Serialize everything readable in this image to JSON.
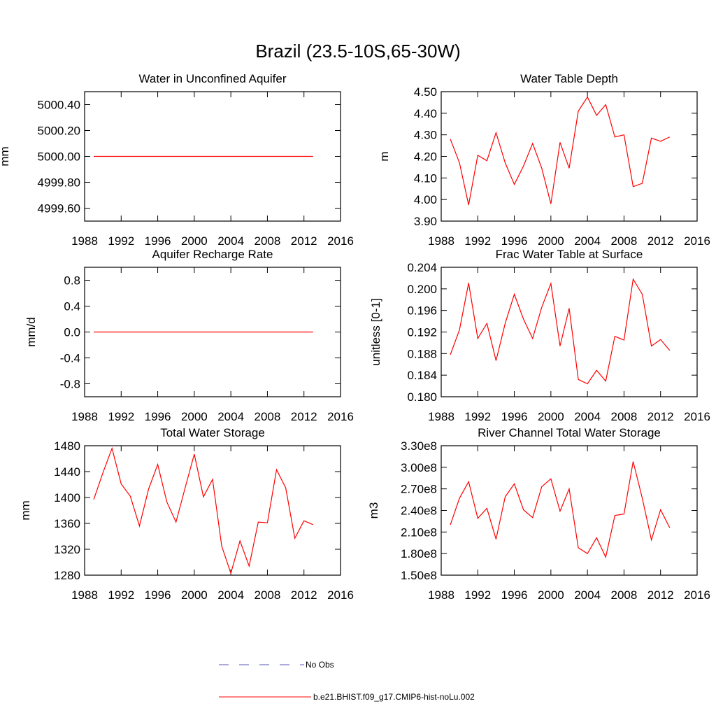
{
  "title": "Brazil (23.5-10S,65-30W)",
  "legend": [
    {
      "name": "No Obs",
      "color": "#5a5ab4",
      "dash": true
    },
    {
      "name": "b.e21.BHIST.f09_g17.CMIP6-hist-noLu.002",
      "color": "#ff0000",
      "dash": false
    }
  ],
  "chart_data": [
    {
      "type": "line",
      "title": "Water in Unconfined Aquifer",
      "ylabel": "mm",
      "x": [
        1989,
        1990,
        1991,
        1992,
        1993,
        1994,
        1995,
        1996,
        1997,
        1998,
        1999,
        2000,
        2001,
        2002,
        2003,
        2004,
        2005,
        2006,
        2007,
        2008,
        2009,
        2010,
        2011,
        2012,
        2013
      ],
      "xlim": [
        1988,
        2016
      ],
      "xticks": [
        1988,
        1992,
        1996,
        2000,
        2004,
        2008,
        2012,
        2016
      ],
      "ylim": [
        4999.5,
        5000.5
      ],
      "yticks": [
        {
          "value": 4999.6,
          "label": "4999.60"
        },
        {
          "value": 4999.8,
          "label": "4999.80"
        },
        {
          "value": 5000,
          "label": "5000.00"
        },
        {
          "value": 5000.2,
          "label": "5000.20"
        },
        {
          "value": 5000.4,
          "label": "5000.40"
        }
      ],
      "series": [
        {
          "color": "#ff0000",
          "values": [
            5000,
            5000,
            5000,
            5000,
            5000,
            5000,
            5000,
            5000,
            5000,
            5000,
            5000,
            5000,
            5000,
            5000,
            5000,
            5000,
            5000,
            5000,
            5000,
            5000,
            5000,
            5000,
            5000,
            5000,
            5000
          ]
        }
      ]
    },
    {
      "type": "line",
      "title": "Water Table Depth",
      "ylabel": "m",
      "x": [
        1989,
        1990,
        1991,
        1992,
        1993,
        1994,
        1995,
        1996,
        1997,
        1998,
        1999,
        2000,
        2001,
        2002,
        2003,
        2004,
        2005,
        2006,
        2007,
        2008,
        2009,
        2010,
        2011,
        2012,
        2013
      ],
      "xlim": [
        1988,
        2016
      ],
      "xticks": [
        1988,
        1992,
        1996,
        2000,
        2004,
        2008,
        2012,
        2016
      ],
      "ylim": [
        3.9,
        4.5
      ],
      "yticks": [
        {
          "value": 3.9,
          "label": "3.90"
        },
        {
          "value": 4.0,
          "label": "4.00"
        },
        {
          "value": 4.1,
          "label": "4.10"
        },
        {
          "value": 4.2,
          "label": "4.20"
        },
        {
          "value": 4.3,
          "label": "4.30"
        },
        {
          "value": 4.4,
          "label": "4.40"
        },
        {
          "value": 4.5,
          "label": "4.50"
        }
      ],
      "series": [
        {
          "color": "#ff0000",
          "values": [
            4.28,
            4.17,
            3.975,
            4.205,
            4.18,
            4.31,
            4.17,
            4.07,
            4.155,
            4.26,
            4.145,
            3.98,
            4.265,
            4.145,
            4.41,
            4.475,
            4.39,
            4.44,
            4.29,
            4.3,
            4.06,
            4.075,
            4.285,
            4.27,
            4.29
          ]
        }
      ]
    },
    {
      "type": "line",
      "title": "Aquifer Recharge Rate",
      "ylabel": "mm/d",
      "x": [
        1989,
        1990,
        1991,
        1992,
        1993,
        1994,
        1995,
        1996,
        1997,
        1998,
        1999,
        2000,
        2001,
        2002,
        2003,
        2004,
        2005,
        2006,
        2007,
        2008,
        2009,
        2010,
        2011,
        2012,
        2013
      ],
      "xlim": [
        1988,
        2016
      ],
      "xticks": [
        1988,
        1992,
        1996,
        2000,
        2004,
        2008,
        2012,
        2016
      ],
      "ylim": [
        -1,
        1
      ],
      "yticks": [
        -0.8,
        -0.4,
        {
          "value": 0,
          "label": "0.0"
        },
        0.4,
        0.8
      ],
      "series": [
        {
          "color": "#ff0000",
          "values": [
            0,
            0,
            0,
            0,
            0,
            0,
            0,
            0,
            0,
            0,
            0,
            0,
            0,
            0,
            0,
            0,
            0,
            0,
            0,
            0,
            0,
            0,
            0,
            0,
            0
          ]
        }
      ]
    },
    {
      "type": "line",
      "title": "Frac Water Table at Surface",
      "ylabel": "unitless [0-1]",
      "x": [
        1989,
        1990,
        1991,
        1992,
        1993,
        1994,
        1995,
        1996,
        1997,
        1998,
        1999,
        2000,
        2001,
        2002,
        2003,
        2004,
        2005,
        2006,
        2007,
        2008,
        2009,
        2010,
        2011,
        2012,
        2013
      ],
      "xlim": [
        1988,
        2016
      ],
      "xticks": [
        1988,
        1992,
        1996,
        2000,
        2004,
        2008,
        2012,
        2016
      ],
      "ylim": [
        0.18,
        0.204
      ],
      "yticks": [
        {
          "value": 0.18,
          "label": "0.180"
        },
        0.184,
        0.188,
        0.192,
        0.196,
        {
          "value": 0.2,
          "label": "0.200"
        },
        0.204
      ],
      "series": [
        {
          "color": "#ff0000",
          "values": [
            0.1878,
            0.1924,
            0.2011,
            0.1908,
            0.1936,
            0.1867,
            0.1936,
            0.199,
            0.1944,
            0.1908,
            0.1966,
            0.201,
            0.1894,
            0.1964,
            0.1832,
            0.1824,
            0.1849,
            0.1829,
            0.1912,
            0.1905,
            0.2018,
            0.199,
            0.1894,
            0.1906,
            0.1886
          ]
        }
      ]
    },
    {
      "type": "line",
      "title": "Total Water Storage",
      "ylabel": "mm",
      "x": [
        1989,
        1990,
        1991,
        1992,
        1993,
        1994,
        1995,
        1996,
        1997,
        1998,
        1999,
        2000,
        2001,
        2002,
        2003,
        2004,
        2005,
        2006,
        2007,
        2008,
        2009,
        2010,
        2011,
        2012,
        2013
      ],
      "xlim": [
        1988,
        2016
      ],
      "xticks": [
        1988,
        1992,
        1996,
        2000,
        2004,
        2008,
        2012,
        2016
      ],
      "ylim": [
        1280,
        1480
      ],
      "yticks": [
        1280,
        1320,
        1360,
        1400,
        1440,
        1480
      ],
      "series": [
        {
          "color": "#ff0000",
          "values": [
            1397,
            1438,
            1476,
            1421,
            1402,
            1356,
            1413,
            1451,
            1393,
            1362,
            1415,
            1467,
            1401,
            1428,
            1325,
            1283,
            1333,
            1294,
            1362,
            1361,
            1443,
            1415,
            1337,
            1364,
            1358
          ]
        }
      ]
    },
    {
      "type": "line",
      "title": "River Channel Total Water Storage",
      "ylabel": "m3",
      "x": [
        1989,
        1990,
        1991,
        1992,
        1993,
        1994,
        1995,
        1996,
        1997,
        1998,
        1999,
        2000,
        2001,
        2002,
        2003,
        2004,
        2005,
        2006,
        2007,
        2008,
        2009,
        2010,
        2011,
        2012,
        2013
      ],
      "xlim": [
        1988,
        2016
      ],
      "xticks": [
        1988,
        1992,
        1996,
        2000,
        2004,
        2008,
        2012,
        2016
      ],
      "ylim": [
        150000000,
        330000000
      ],
      "yticks": [
        {
          "value": 150000000,
          "label": "1.50e8"
        },
        {
          "value": 180000000,
          "label": "1.80e8"
        },
        {
          "value": 210000000,
          "label": "2.10e8"
        },
        {
          "value": 240000000,
          "label": "2.40e8"
        },
        {
          "value": 270000000,
          "label": "2.70e8"
        },
        {
          "value": 300000000,
          "label": "3.00e8"
        },
        {
          "value": 330000000,
          "label": "3.30e8"
        }
      ],
      "series": [
        {
          "color": "#ff0000",
          "values": [
            220000000,
            257000000,
            280000000,
            229000000,
            243000000,
            200000000,
            259000000,
            277000000,
            241000000,
            230000000,
            273000000,
            284000000,
            239000000,
            270000000,
            188000000,
            180000000,
            202000000,
            175000000,
            233000000,
            235000000,
            308000000,
            257000000,
            199000000,
            241000000,
            216000000
          ]
        }
      ]
    }
  ]
}
